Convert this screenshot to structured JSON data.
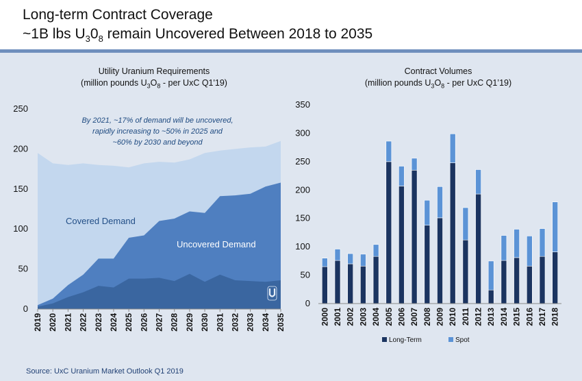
{
  "header": {
    "title_line1": "Long-term Contract Coverage",
    "title_line2_pre": "~1B lbs U",
    "title_line2_sub1": "3",
    "title_line2_mid": "0",
    "title_line2_sub2": "8",
    "title_line2_post": " remain Uncovered Between 2018 to 2035"
  },
  "left_chart_title": {
    "line1": "Utility Uranium Requirements",
    "line2_pre": "(million pounds U",
    "line2_sub1": "3",
    "line2_mid": "O",
    "line2_sub2": "8",
    "line2_post": " - per UxC Q1'19)"
  },
  "right_chart_title": {
    "line1": "Contract Volumes",
    "line2_pre": "(million pounds U",
    "line2_sub1": "3",
    "line2_mid": "O",
    "line2_sub2": "8",
    "line2_post": " - per UxC Q1’19)"
  },
  "annotation": {
    "line1": "By 2021, ~17% of demand will be uncovered,",
    "line2": "rapidly increasing to ~50% in 2025 and",
    "line3": "~60% by 2030 and beyond"
  },
  "source": "Source: UxC Uranium Market Outlook Q1 2019",
  "colors": {
    "background": "#dfe6f0",
    "header_rule": "#6f8fbd",
    "covered_light": "#c3d7ee",
    "uncovered_mid": "#4f7fc0",
    "bottom_dark": "#3a66a0",
    "long_term": "#1b3460",
    "spot": "#5b93d6"
  },
  "chart_data": [
    {
      "type": "area",
      "x": [
        "2019",
        "2020",
        "2021",
        "2022",
        "2023",
        "2024",
        "2025",
        "2026",
        "2027",
        "2028",
        "2029",
        "2030",
        "2031",
        "2032",
        "2033",
        "2034",
        "2035"
      ],
      "series": [
        {
          "values": [
            3,
            7,
            15,
            21,
            29,
            27,
            38,
            38,
            39,
            35,
            44,
            34,
            43,
            36,
            35,
            34,
            36
          ]
        },
        {
          "values": [
            5,
            13,
            30,
            43,
            63,
            63,
            89,
            92,
            110,
            113,
            122,
            120,
            141,
            142,
            144,
            153,
            158
          ]
        },
        {
          "values": [
            195,
            182,
            180,
            182,
            180,
            179,
            177,
            182,
            184,
            183,
            187,
            195,
            198,
            200,
            202,
            203,
            210
          ]
        }
      ],
      "labels": [
        "Covered Demand",
        "Uncovered Demand"
      ],
      "ylim": [
        0,
        250
      ],
      "yticks": [
        0,
        50,
        100,
        150,
        200,
        250
      ],
      "grid": false
    },
    {
      "type": "bar",
      "stacked": true,
      "categories": [
        "2000",
        "2001",
        "2002",
        "2003",
        "2004",
        "2005",
        "2006",
        "2007",
        "2008",
        "2009",
        "2010",
        "2011",
        "2012",
        "2013",
        "2014",
        "2015",
        "2016",
        "2017",
        "2018"
      ],
      "series": [
        {
          "name": "Long-Term",
          "values": [
            65,
            76,
            70,
            66,
            83,
            250,
            207,
            235,
            138,
            151,
            248,
            112,
            193,
            24,
            76,
            81,
            66,
            83,
            91
          ]
        },
        {
          "name": "Spot",
          "values": [
            15,
            20,
            18,
            21,
            21,
            36,
            35,
            21,
            44,
            55,
            51,
            57,
            43,
            51,
            44,
            50,
            53,
            49,
            88
          ]
        }
      ],
      "ylim": [
        0,
        350
      ],
      "yticks": [
        0,
        50,
        100,
        150,
        200,
        250,
        300,
        350
      ],
      "legend": "bottom",
      "grid": false
    }
  ]
}
